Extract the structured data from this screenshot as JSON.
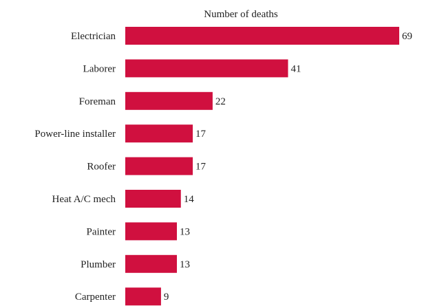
{
  "chart_data": {
    "type": "bar",
    "orientation": "horizontal",
    "title": "Number of deaths",
    "categories": [
      "Electrician",
      "Laborer",
      "Foreman",
      "Power-line installer",
      "Roofer",
      "Heat A/C mech",
      "Painter",
      "Plumber",
      "Carpenter"
    ],
    "values": [
      69,
      41,
      22,
      17,
      17,
      14,
      13,
      13,
      9
    ],
    "value_labels": [
      "69",
      "41",
      "22",
      "17",
      "17",
      "14",
      "13",
      "13",
      "9"
    ],
    "xlabel": "",
    "ylabel": "",
    "xlim": [
      0,
      69
    ],
    "grid": false,
    "legend": "none",
    "bar_color": "#d0103f"
  }
}
